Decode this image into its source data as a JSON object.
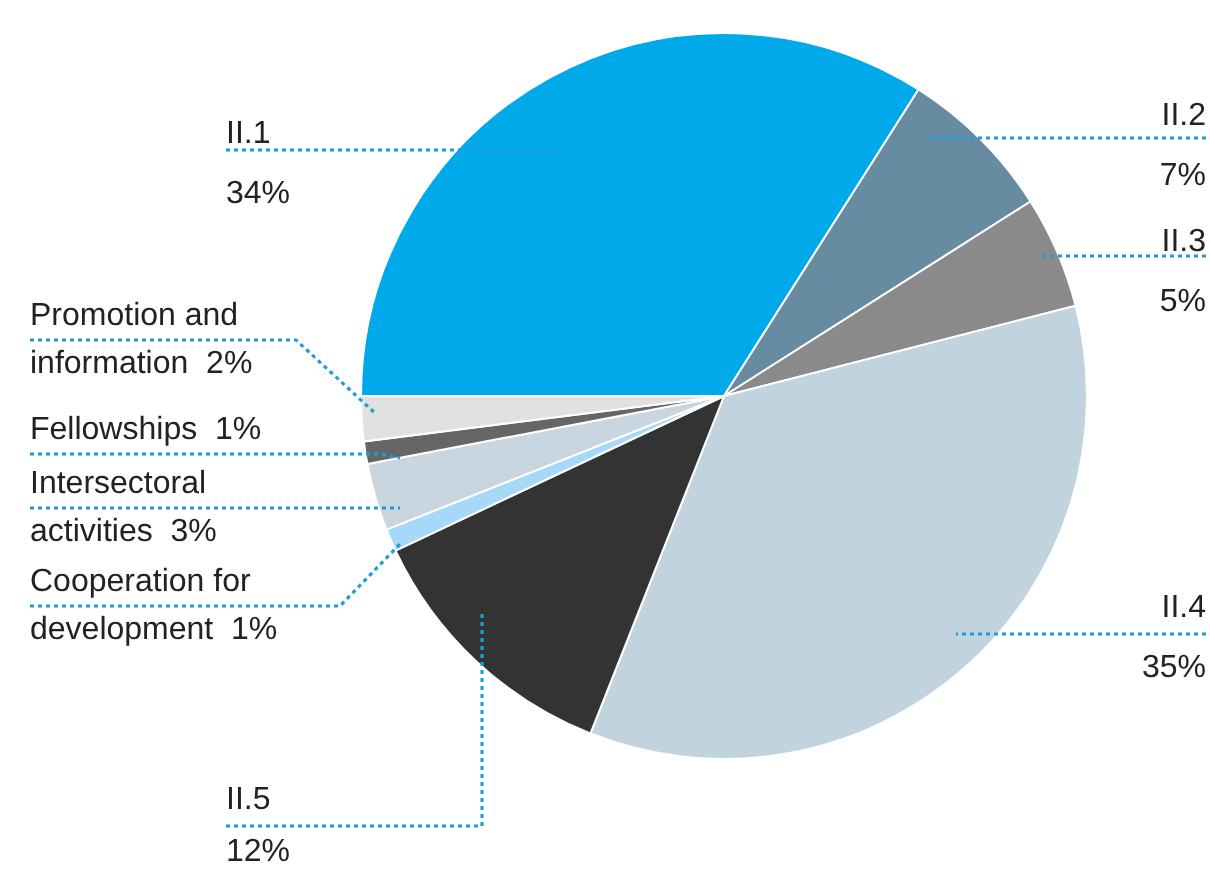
{
  "chart_data": {
    "type": "pie",
    "categories": [
      "II.1",
      "II.2",
      "II.3",
      "II.4",
      "II.5",
      "Cooperation for development",
      "Intersectoral activities",
      "Fellowships",
      "Promotion and information"
    ],
    "values": [
      34,
      7,
      5,
      35,
      12,
      1,
      3,
      1,
      2
    ],
    "value_labels": [
      "34%",
      "7%",
      "5%",
      "35%",
      "12%",
      "1%",
      "3%",
      "1%",
      "2%"
    ],
    "colors": [
      "#00a9e9",
      "#678ba1",
      "#8a8a8a",
      "#c2d3e0",
      "#333333",
      "#a6d9f7",
      "#c9d5df",
      "#666666",
      "#e1e1e1"
    ],
    "legend": false
  }
}
